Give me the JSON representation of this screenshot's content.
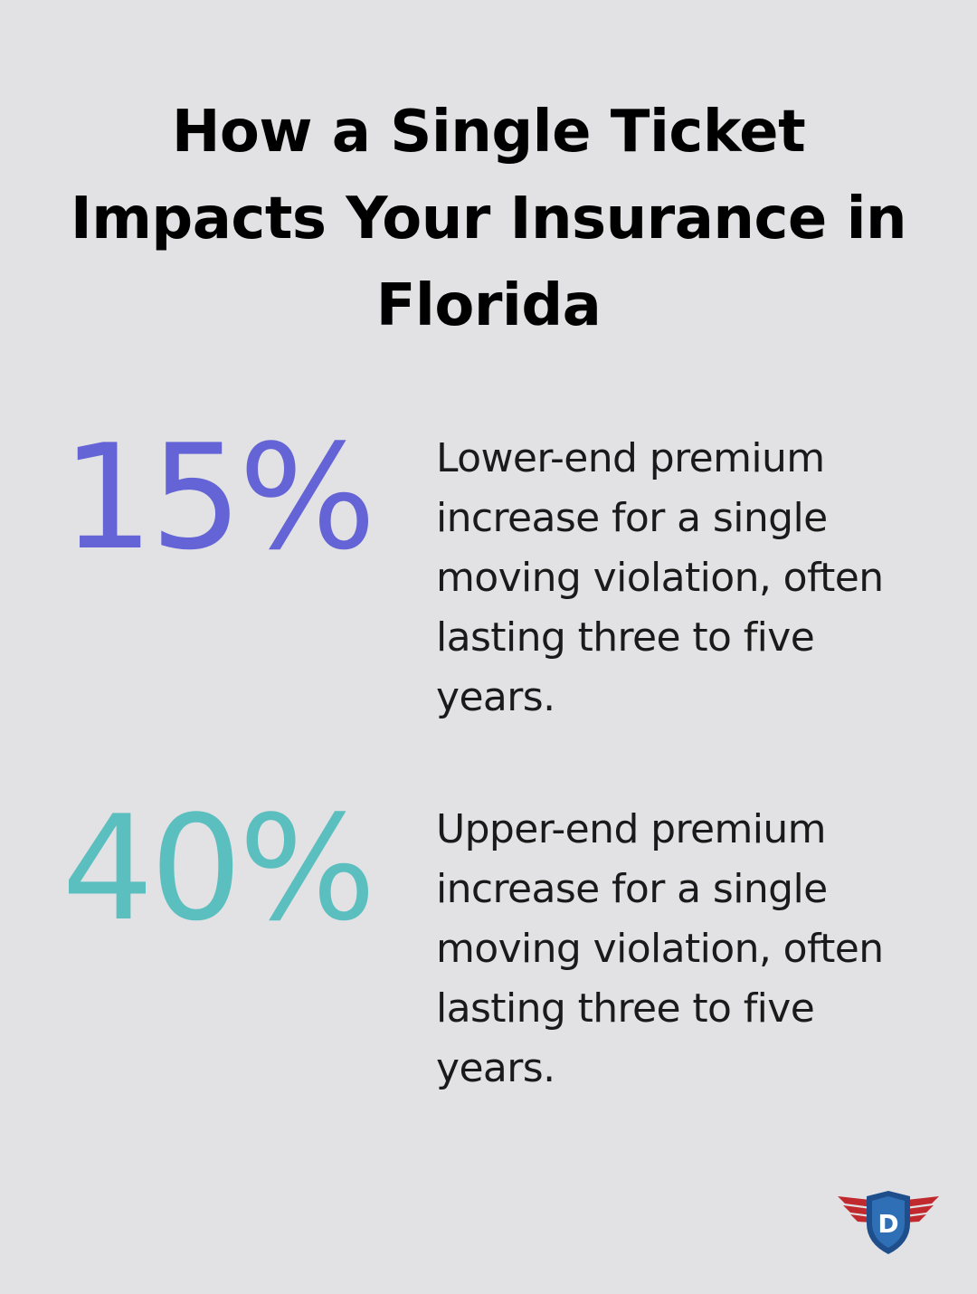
{
  "title": "How a Single Ticket Impacts Your Insurance in Florida",
  "stats": [
    {
      "value": "15%",
      "description": "Lower-end premium increase for a single moving violation, often lasting three to five years.",
      "color": "#6464d6"
    },
    {
      "value": "40%",
      "description": "Upper-end premium increase for a single moving violation, often lasting three to five years.",
      "color": "#5cbfbf"
    }
  ],
  "logo": {
    "letter": "D",
    "shield_color": "#1e4f8c",
    "wing_color": "#c0292e"
  }
}
